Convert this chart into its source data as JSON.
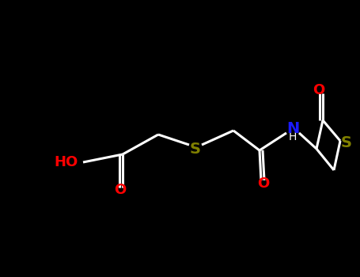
{
  "background_color": "#000000",
  "bond_color": "#ffffff",
  "O_color": "#ff0000",
  "S_color": "#808000",
  "N_color": "#1a1aff",
  "H_color": "#ffffff",
  "bond_width": 2.2,
  "figsize": [
    4.55,
    3.5
  ],
  "dpi": 100,
  "xlim": [
    0,
    455
  ],
  "ylim": [
    0,
    350
  ]
}
